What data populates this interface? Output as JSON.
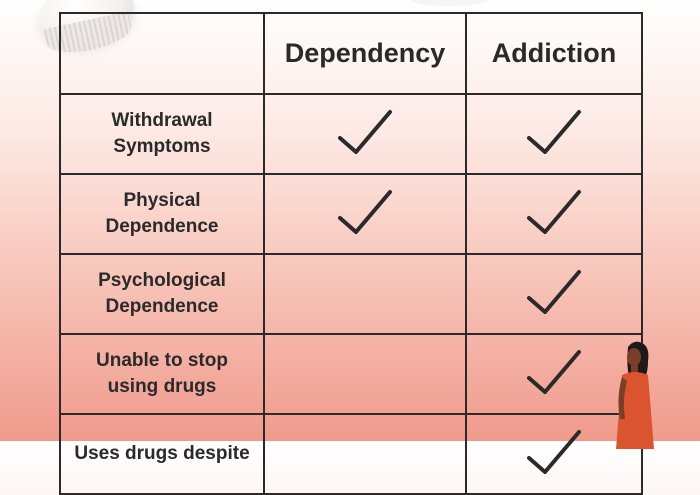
{
  "table": {
    "columns": [
      "",
      "Dependency",
      "Addiction"
    ],
    "rows": [
      {
        "label_lines": [
          "Withdrawal",
          "Symptoms"
        ],
        "dependency": true,
        "addiction": true
      },
      {
        "label_lines": [
          "Physical",
          "Dependence"
        ],
        "dependency": true,
        "addiction": true
      },
      {
        "label_lines": [
          "Psychological",
          "Dependence"
        ],
        "dependency": false,
        "addiction": true
      },
      {
        "label_lines": [
          "Unable to stop",
          "using drugs"
        ],
        "dependency": false,
        "addiction": true
      },
      {
        "label_lines": [
          "Uses drugs despite"
        ],
        "dependency": false,
        "addiction": true
      }
    ]
  },
  "icons": {
    "check": "checkmark-icon"
  },
  "colors": {
    "ink": "#2a2a2a",
    "bg_top": "#ffffff",
    "bg_bottom": "#f09a8c",
    "figure_dress": "#d9542f"
  }
}
